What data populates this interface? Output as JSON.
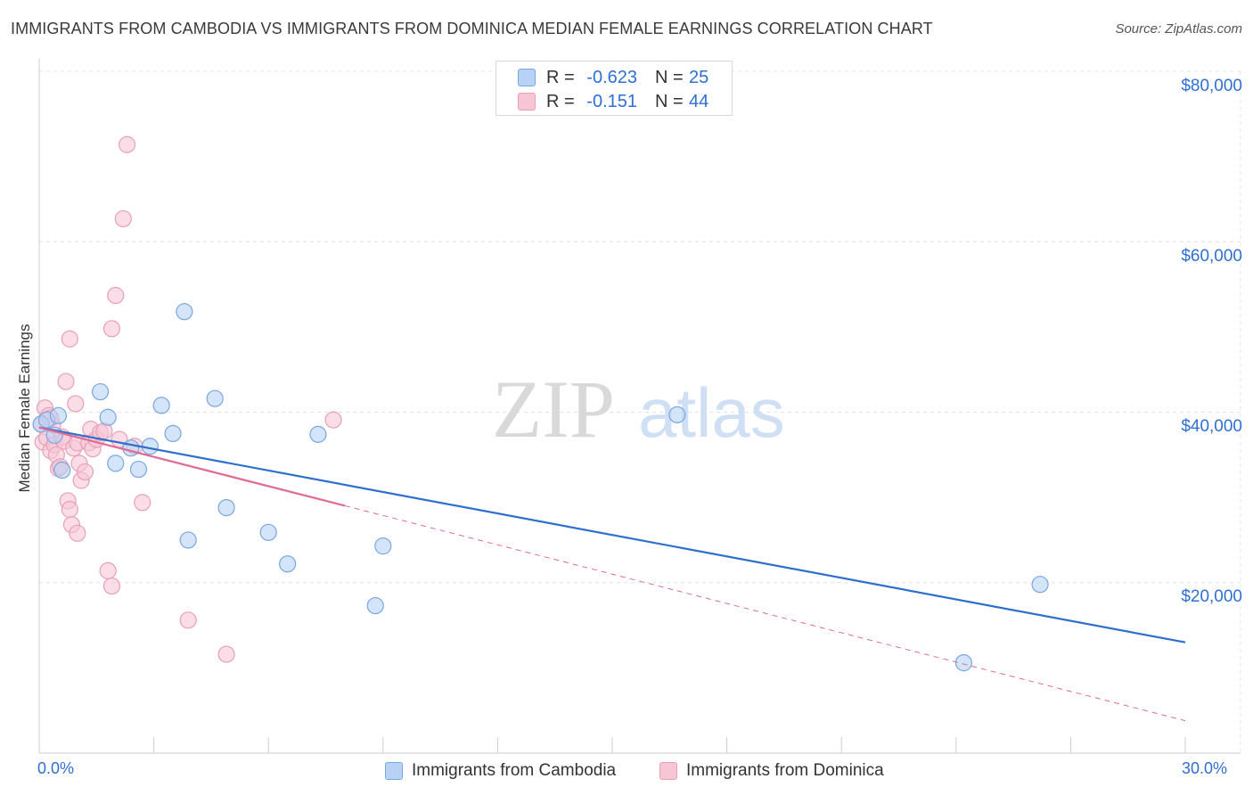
{
  "title": "IMMIGRANTS FROM CAMBODIA VS IMMIGRANTS FROM DOMINICA MEDIAN FEMALE EARNINGS CORRELATION CHART",
  "source": "Source: ZipAtlas.com",
  "watermark": {
    "zip": "ZIP",
    "atlas": "atlas"
  },
  "legend_top": {
    "rows": [
      {
        "r_label": "R =",
        "r_value": "-0.623",
        "n_label": "N =",
        "n_value": "25"
      },
      {
        "r_label": "R =",
        "r_value": "-0.151",
        "n_label": "N =",
        "n_value": "44"
      }
    ]
  },
  "legend_bottom": {
    "cambodia": "Immigrants from Cambodia",
    "dominica": "Immigrants from Dominica"
  },
  "colors": {
    "cambodia_fill": "#b8d2f5",
    "cambodia_stroke": "#7aa6e0",
    "cambodia_line": "#2d6fcd",
    "dominica_fill": "#f7c6d5",
    "dominica_stroke": "#e8a0b7",
    "dominica_line": "#e06b94",
    "axis_text": "#2f6fd0",
    "grid": "#e3e3e3"
  },
  "chart_data": {
    "type": "scatter",
    "title": "IMMIGRANTS FROM CAMBODIA VS IMMIGRANTS FROM DOMINICA MEDIAN FEMALE EARNINGS CORRELATION CHART",
    "xlabel": "",
    "ylabel": "Median Female Earnings",
    "xlim": [
      0,
      30
    ],
    "ylim": [
      0,
      80000
    ],
    "x_tick_labels": [
      "0.0%",
      "30.0%"
    ],
    "y_ticks": [
      20000,
      40000,
      60000,
      80000
    ],
    "y_tick_labels": [
      "$20,000",
      "$40,000",
      "$60,000",
      "$80,000"
    ],
    "series": [
      {
        "name": "Immigrants from Cambodia",
        "r": -0.623,
        "n": 25,
        "points": [
          [
            0.05,
            38600
          ],
          [
            0.4,
            37300
          ],
          [
            0.6,
            33200
          ],
          [
            1.6,
            42400
          ],
          [
            1.8,
            39400
          ],
          [
            2.0,
            34000
          ],
          [
            2.4,
            35800
          ],
          [
            2.6,
            33300
          ],
          [
            2.9,
            36000
          ],
          [
            3.2,
            40800
          ],
          [
            3.5,
            37500
          ],
          [
            3.8,
            51800
          ],
          [
            3.9,
            25000
          ],
          [
            4.6,
            41600
          ],
          [
            4.9,
            28800
          ],
          [
            6.0,
            25900
          ],
          [
            6.5,
            22200
          ],
          [
            7.3,
            37400
          ],
          [
            8.8,
            17300
          ],
          [
            9.0,
            24300
          ],
          [
            16.7,
            39700
          ],
          [
            24.2,
            10600
          ],
          [
            26.2,
            19800
          ],
          [
            0.2,
            39100
          ],
          [
            0.5,
            39600
          ]
        ],
        "trend": {
          "x0": 0,
          "y0": 38200,
          "x1": 30,
          "y1": 13000,
          "dashed_from": null
        }
      },
      {
        "name": "Immigrants from Dominica",
        "r": -0.151,
        "n": 44,
        "points": [
          [
            0.05,
            38600
          ],
          [
            0.1,
            36500
          ],
          [
            0.15,
            40500
          ],
          [
            0.2,
            37000
          ],
          [
            0.25,
            39600
          ],
          [
            0.3,
            35500
          ],
          [
            0.35,
            38500
          ],
          [
            0.4,
            36200
          ],
          [
            0.45,
            35000
          ],
          [
            0.5,
            33400
          ],
          [
            0.55,
            33600
          ],
          [
            0.6,
            37100
          ],
          [
            0.65,
            36600
          ],
          [
            0.7,
            43600
          ],
          [
            0.75,
            29600
          ],
          [
            0.8,
            28600
          ],
          [
            0.8,
            48600
          ],
          [
            0.85,
            26800
          ],
          [
            0.9,
            35800
          ],
          [
            0.95,
            41000
          ],
          [
            1.0,
            36400
          ],
          [
            1.0,
            25800
          ],
          [
            1.05,
            34000
          ],
          [
            1.1,
            32000
          ],
          [
            1.2,
            33000
          ],
          [
            1.3,
            36400
          ],
          [
            1.35,
            38000
          ],
          [
            1.4,
            35700
          ],
          [
            1.5,
            36800
          ],
          [
            1.6,
            37600
          ],
          [
            1.7,
            37800
          ],
          [
            1.8,
            21400
          ],
          [
            1.9,
            19600
          ],
          [
            1.9,
            49800
          ],
          [
            2.0,
            53700
          ],
          [
            2.1,
            36800
          ],
          [
            2.2,
            62700
          ],
          [
            2.3,
            71400
          ],
          [
            2.5,
            36000
          ],
          [
            2.7,
            29400
          ],
          [
            3.9,
            15600
          ],
          [
            4.9,
            11600
          ],
          [
            7.7,
            39100
          ],
          [
            0.3,
            39300
          ]
        ],
        "trend": {
          "x0": 0,
          "y0": 38200,
          "x1": 30,
          "y1": 3800,
          "dashed_from": 8.0
        }
      }
    ]
  }
}
